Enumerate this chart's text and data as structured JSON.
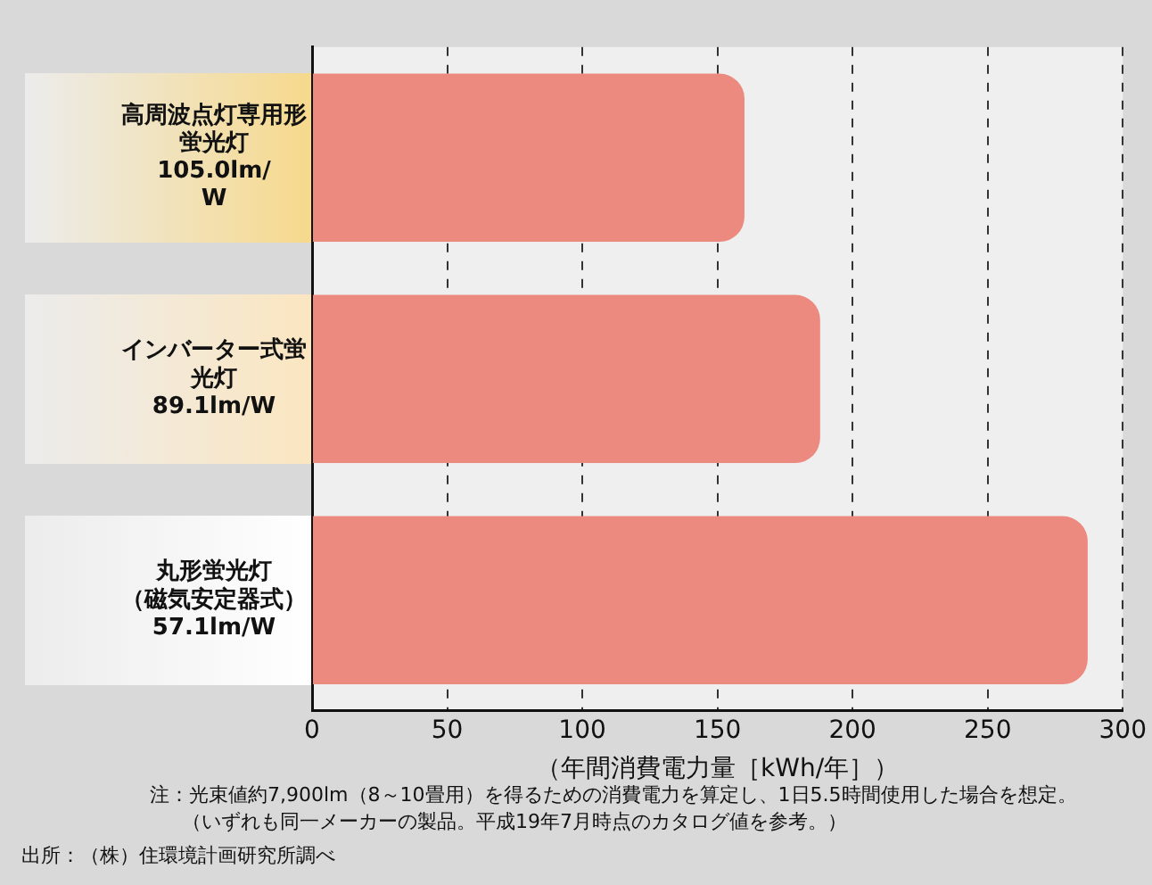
{
  "chart_data": {
    "type": "bar",
    "orientation": "horizontal",
    "categories": [
      "高周波点灯専用形蛍光灯105.0lm/W",
      "インバーター式蛍光灯89.1lm/W",
      "丸形蛍光灯（磁気安定器式）57.1lm/W"
    ],
    "values": [
      160,
      188,
      287
    ],
    "color": "#ec8a80",
    "xlim": [
      0,
      300
    ],
    "xticks": [
      0,
      50,
      100,
      150,
      200,
      250,
      300
    ],
    "xlabel": "（年間消費電力量［kWh/年］）",
    "grid": "x",
    "annotations": [
      "注：光束値約7,900lm（8～10畳用）を得るための消費電力を算定し、1日5.5時間使用した場合を想定。",
      "（いずれも同一メーカーの製品。平成19年7月時点のカタログ値を参考。）",
      "出所：（株）住環境計画研究所調べ"
    ]
  }
}
